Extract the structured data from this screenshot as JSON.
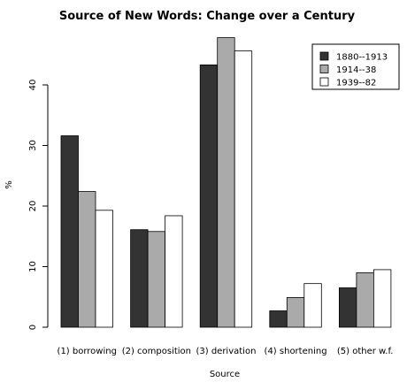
{
  "chart_data": {
    "type": "bar",
    "title": "Source of New Words: Change over a Century",
    "xlabel": "Source",
    "ylabel": "%",
    "categories": [
      "(1) borrowing",
      "(2) composition",
      "(3) derivation",
      "(4) shortening",
      "(5) other w.f."
    ],
    "series": [
      {
        "name": "1880--1913",
        "color": "#333333",
        "values": [
          31.6,
          16.1,
          43.3,
          2.7,
          6.5
        ]
      },
      {
        "name": "1914--38",
        "color": "#aaaaaa",
        "values": [
          22.4,
          15.8,
          47.8,
          4.9,
          9.0
        ]
      },
      {
        "name": "1939--82",
        "color": "#ffffff",
        "values": [
          19.3,
          18.4,
          45.6,
          7.2,
          9.5
        ]
      }
    ],
    "ylim": [
      0,
      48
    ],
    "yticks": [
      0,
      10,
      20,
      30,
      40
    ],
    "grid": false,
    "legend_position": "top-right"
  }
}
